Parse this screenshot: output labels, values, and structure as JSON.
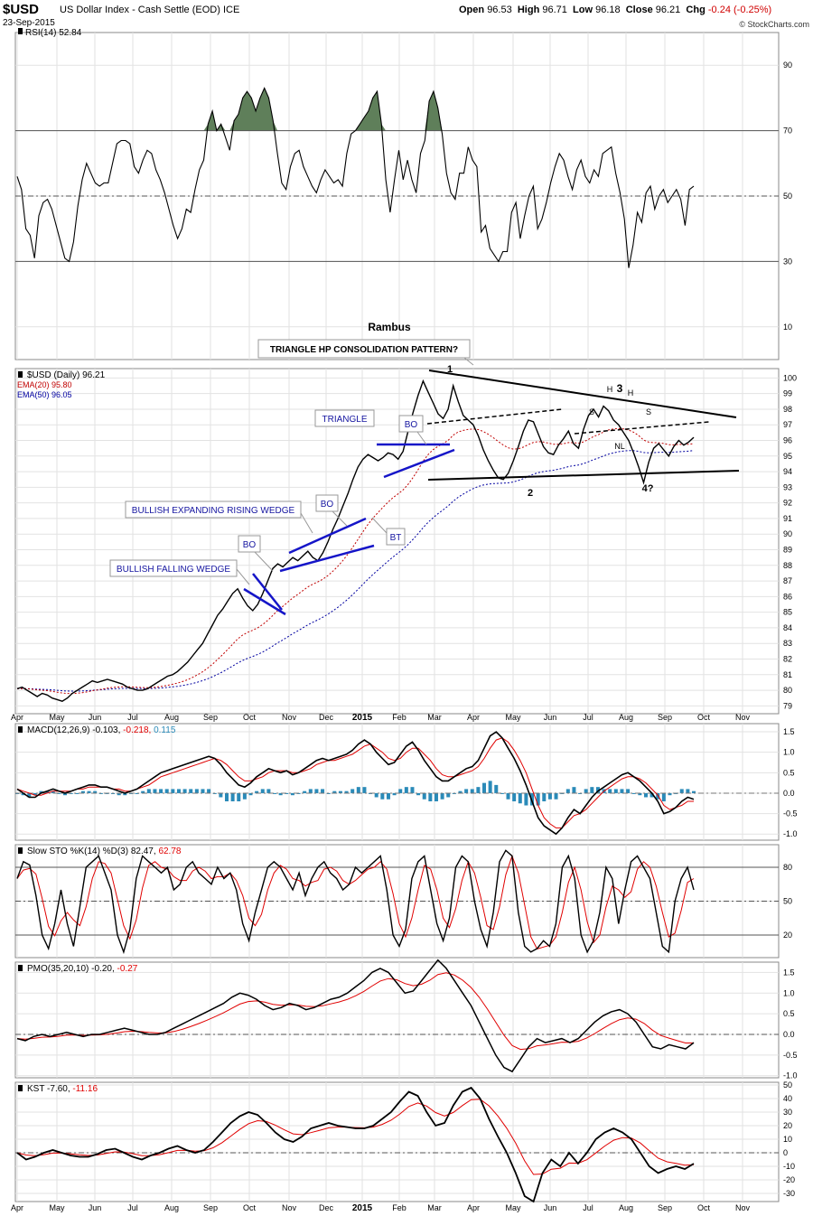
{
  "header": {
    "symbol": "$USD",
    "description": "US Dollar Index - Cash Settle (EOD) ICE",
    "date": "23-Sep-2015",
    "open_label": "Open",
    "open": "96.53",
    "high_label": "High",
    "high": "96.71",
    "low_label": "Low",
    "low": "96.18",
    "close_label": "Close",
    "close": "96.21",
    "chg_label": "Chg",
    "chg": "-0.24 (-0.25%)",
    "brand": "© StockCharts.com"
  },
  "colors": {
    "grid": "#e2e2e2",
    "ema20": "#c00000",
    "ema50": "#0000a0",
    "pattern": "#1515c8",
    "rsi_fill": "#5f7f5a",
    "hist": "#2a8ab8",
    "signal": "#e00000"
  },
  "x_axis": {
    "labels": [
      "Apr",
      "May",
      "Jun",
      "Jul",
      "Aug",
      "Sep",
      "Oct",
      "Nov",
      "Dec",
      "2015",
      "Feb",
      "Mar",
      "Apr",
      "May",
      "Jun",
      "Jul",
      "Aug",
      "Sep",
      "Oct",
      "Nov"
    ],
    "bold_index": 9
  },
  "chart_data": [
    {
      "type": "line",
      "panel": "rsi",
      "legend": "RSI(14) 52.84",
      "ylim": [
        0,
        100
      ],
      "yticks": [
        90,
        70,
        50,
        30,
        10
      ],
      "levels": [
        70,
        50,
        30
      ],
      "values": [
        56,
        52,
        40,
        38,
        31,
        44,
        48,
        49,
        46,
        41,
        36,
        31,
        30,
        36,
        47,
        55,
        60,
        57,
        54,
        53,
        54,
        54,
        60,
        66,
        67,
        67,
        66,
        59,
        57,
        61,
        64,
        63,
        58,
        55,
        51,
        46,
        41,
        37,
        40,
        46,
        45,
        52,
        58,
        61,
        72,
        76,
        70,
        72,
        68,
        64,
        73,
        75,
        80,
        82,
        80,
        76,
        80,
        83,
        80,
        73,
        63,
        54,
        52,
        59,
        63,
        64,
        59,
        56,
        53,
        51,
        55,
        58,
        56,
        54,
        55,
        53,
        63,
        69,
        70,
        72,
        74,
        76,
        80,
        82,
        72,
        55,
        45,
        55,
        64,
        55,
        61,
        55,
        51,
        63,
        67,
        79,
        82,
        77,
        69,
        57,
        51,
        49,
        57,
        57,
        65,
        61,
        59,
        39,
        41,
        34,
        32,
        30,
        33,
        33,
        45,
        48,
        37,
        44,
        50,
        53,
        40,
        43,
        48,
        54,
        59,
        63,
        61,
        56,
        52,
        58,
        61,
        56,
        54,
        58,
        56,
        63,
        64,
        65,
        57,
        51,
        43,
        28,
        35,
        45,
        42,
        51,
        53,
        46,
        50,
        52,
        48,
        50,
        52,
        49,
        41,
        52,
        53
      ]
    },
    {
      "type": "line",
      "panel": "price",
      "legend": "$USD (Daily) 96.21",
      "ema20_label": "EMA(20) 95.80",
      "ema50_label": "EMA(50) 96.05",
      "ylim": [
        78.5,
        100.6
      ],
      "yticks": [
        100,
        99,
        98,
        97,
        96,
        95,
        94,
        93,
        92,
        91,
        90,
        89,
        88,
        87,
        86,
        85,
        84,
        83,
        82,
        81,
        80,
        79
      ],
      "values": [
        80.1,
        80.2,
        80.0,
        79.8,
        79.6,
        79.8,
        79.7,
        79.5,
        79.4,
        79.3,
        79.5,
        79.8,
        80.0,
        80.2,
        80.4,
        80.6,
        80.5,
        80.6,
        80.7,
        80.6,
        80.5,
        80.4,
        80.2,
        80.1,
        80.0,
        80.0,
        80.1,
        80.3,
        80.5,
        80.7,
        80.9,
        81.0,
        81.2,
        81.5,
        81.8,
        82.2,
        82.6,
        83.0,
        83.6,
        84.2,
        84.8,
        85.2,
        85.7,
        86.2,
        86.5,
        85.9,
        85.4,
        85.1,
        85.5,
        86.2,
        87.0,
        87.8,
        88.1,
        87.9,
        88.2,
        88.5,
        88.3,
        88.6,
        88.9,
        88.5,
        88.3,
        88.8,
        89.5,
        90.3,
        91.0,
        91.8,
        92.6,
        93.5,
        94.3,
        94.8,
        95.1,
        94.9,
        94.7,
        94.9,
        95.2,
        95.1,
        94.8,
        95.3,
        96.6,
        97.8,
        98.9,
        99.8,
        99.1,
        98.4,
        97.7,
        97.4,
        98.0,
        99.5,
        98.5,
        97.6,
        97.3,
        97.0,
        96.3,
        95.4,
        94.7,
        94.1,
        93.6,
        93.5,
        93.9,
        94.7,
        95.6,
        96.6,
        97.3,
        97.2,
        96.4,
        95.6,
        95.2,
        95.1,
        95.7,
        96.1,
        96.6,
        95.8,
        95.5,
        96.7,
        97.6,
        98.0,
        97.5,
        98.2,
        97.9,
        97.3,
        97.0,
        96.5,
        96.0,
        95.2,
        94.3,
        93.3,
        94.6,
        95.5,
        95.8,
        95.4,
        95.0,
        95.6,
        96.0,
        95.7,
        95.9,
        96.2
      ]
    },
    {
      "type": "line",
      "panel": "macd",
      "legend": "MACD(12,26,9)",
      "legend_values": [
        "-0.103",
        "-0.218",
        "0.115"
      ],
      "ylim": [
        -1.15,
        1.7
      ],
      "yticks": [
        1.5,
        1.0,
        0.5,
        0.0,
        -0.5,
        -1.0
      ],
      "macd": [
        0.1,
        0.0,
        -0.1,
        -0.1,
        0.0,
        0.05,
        0.1,
        0.05,
        0.0,
        0.05,
        0.1,
        0.15,
        0.2,
        0.2,
        0.15,
        0.15,
        0.1,
        0.05,
        0.0,
        0.05,
        0.1,
        0.2,
        0.3,
        0.4,
        0.5,
        0.55,
        0.6,
        0.65,
        0.7,
        0.75,
        0.8,
        0.85,
        0.9,
        0.85,
        0.7,
        0.5,
        0.35,
        0.2,
        0.15,
        0.25,
        0.4,
        0.5,
        0.6,
        0.55,
        0.5,
        0.55,
        0.45,
        0.5,
        0.6,
        0.7,
        0.8,
        0.85,
        0.8,
        0.85,
        0.9,
        0.95,
        1.05,
        1.2,
        1.3,
        1.2,
        1.0,
        0.85,
        0.7,
        0.75,
        0.95,
        1.15,
        1.25,
        1.05,
        0.8,
        0.6,
        0.4,
        0.3,
        0.3,
        0.4,
        0.5,
        0.6,
        0.65,
        0.8,
        1.1,
        1.4,
        1.5,
        1.35,
        1.1,
        0.85,
        0.55,
        0.2,
        -0.2,
        -0.6,
        -0.8,
        -0.9,
        -1.0,
        -0.85,
        -0.6,
        -0.4,
        -0.5,
        -0.3,
        -0.1,
        0.05,
        0.15,
        0.25,
        0.35,
        0.45,
        0.5,
        0.4,
        0.3,
        0.15,
        0.0,
        -0.2,
        -0.5,
        -0.45,
        -0.35,
        -0.2,
        -0.1,
        -0.15
      ],
      "signal": [
        0.1,
        0.05,
        0.0,
        -0.05,
        -0.05,
        0.0,
        0.05,
        0.05,
        0.05,
        0.05,
        0.1,
        0.1,
        0.15,
        0.15,
        0.15,
        0.15,
        0.1,
        0.1,
        0.05,
        0.05,
        0.1,
        0.15,
        0.2,
        0.3,
        0.4,
        0.45,
        0.5,
        0.55,
        0.6,
        0.65,
        0.7,
        0.75,
        0.8,
        0.85,
        0.8,
        0.7,
        0.55,
        0.4,
        0.3,
        0.3,
        0.35,
        0.4,
        0.5,
        0.55,
        0.55,
        0.55,
        0.5,
        0.5,
        0.55,
        0.6,
        0.7,
        0.75,
        0.8,
        0.8,
        0.85,
        0.9,
        0.95,
        1.05,
        1.15,
        1.2,
        1.1,
        1.0,
        0.85,
        0.8,
        0.85,
        1.0,
        1.1,
        1.1,
        0.95,
        0.8,
        0.6,
        0.45,
        0.4,
        0.4,
        0.45,
        0.5,
        0.55,
        0.65,
        0.85,
        1.1,
        1.3,
        1.35,
        1.25,
        1.05,
        0.8,
        0.5,
        0.1,
        -0.3,
        -0.6,
        -0.75,
        -0.85,
        -0.85,
        -0.7,
        -0.55,
        -0.5,
        -0.4,
        -0.25,
        -0.1,
        0.05,
        0.15,
        0.25,
        0.35,
        0.4,
        0.4,
        0.35,
        0.25,
        0.1,
        -0.05,
        -0.3,
        -0.4,
        -0.35,
        -0.3,
        -0.2,
        -0.2
      ]
    },
    {
      "type": "line",
      "panel": "stoch",
      "legend": "Slow STO %K(14) %D(3)",
      "legend_values": [
        "82.47",
        "62.78"
      ],
      "ylim": [
        0,
        100
      ],
      "yticks": [
        80,
        50,
        20
      ],
      "levels": [
        80,
        50,
        20
      ],
      "values": [
        70,
        85,
        82,
        55,
        20,
        8,
        30,
        60,
        30,
        10,
        45,
        80,
        85,
        90,
        75,
        60,
        20,
        5,
        25,
        70,
        90,
        85,
        80,
        75,
        80,
        60,
        65,
        80,
        85,
        75,
        70,
        65,
        80,
        70,
        75,
        60,
        30,
        15,
        40,
        60,
        80,
        85,
        80,
        70,
        60,
        75,
        55,
        70,
        80,
        85,
        75,
        70,
        60,
        65,
        80,
        75,
        80,
        85,
        90,
        60,
        20,
        10,
        25,
        70,
        85,
        90,
        60,
        30,
        15,
        35,
        80,
        90,
        85,
        50,
        25,
        10,
        40,
        85,
        95,
        90,
        40,
        10,
        5,
        8,
        15,
        10,
        30,
        80,
        90,
        70,
        20,
        5,
        15,
        40,
        80,
        70,
        30,
        60,
        85,
        90,
        80,
        70,
        40,
        10,
        5,
        50,
        70,
        80,
        60
      ]
    },
    {
      "type": "line",
      "panel": "pmo",
      "legend": "PMO(35,20,10)",
      "legend_values": [
        "-0.20",
        "-0.27"
      ],
      "ylim": [
        -1.05,
        1.75
      ],
      "yticks": [
        1.5,
        1.0,
        0.5,
        0.0,
        -0.5,
        -1.0
      ],
      "values": [
        -0.1,
        -0.15,
        -0.05,
        0.0,
        -0.05,
        0.0,
        0.05,
        0.0,
        -0.05,
        0.0,
        0.0,
        0.05,
        0.1,
        0.15,
        0.1,
        0.05,
        0.0,
        0.0,
        0.05,
        0.15,
        0.25,
        0.35,
        0.45,
        0.55,
        0.65,
        0.75,
        0.9,
        1.0,
        0.95,
        0.85,
        0.7,
        0.6,
        0.65,
        0.75,
        0.7,
        0.6,
        0.65,
        0.75,
        0.85,
        0.9,
        1.0,
        1.15,
        1.3,
        1.5,
        1.6,
        1.5,
        1.25,
        1.0,
        1.05,
        1.3,
        1.55,
        1.8,
        1.6,
        1.3,
        1.0,
        0.7,
        0.3,
        -0.1,
        -0.5,
        -0.8,
        -0.9,
        -0.6,
        -0.3,
        -0.1,
        -0.2,
        -0.15,
        -0.1,
        -0.2,
        -0.1,
        0.1,
        0.3,
        0.45,
        0.55,
        0.6,
        0.5,
        0.3,
        0.0,
        -0.3,
        -0.35,
        -0.25,
        -0.3,
        -0.35,
        -0.2
      ]
    },
    {
      "type": "line",
      "panel": "kst",
      "legend": "KST",
      "legend_values": [
        "-7.60",
        "-11.16"
      ],
      "ylim": [
        -36,
        52
      ],
      "yticks": [
        50,
        40,
        30,
        20,
        10,
        0,
        -10,
        -20,
        -30
      ],
      "values": [
        0,
        -5,
        -3,
        0,
        2,
        0,
        -2,
        -3,
        -3,
        -1,
        2,
        3,
        0,
        -3,
        -5,
        -2,
        0,
        3,
        5,
        2,
        0,
        2,
        8,
        15,
        22,
        27,
        30,
        28,
        22,
        15,
        10,
        8,
        12,
        18,
        20,
        22,
        20,
        19,
        18,
        18,
        20,
        25,
        30,
        38,
        45,
        42,
        30,
        20,
        22,
        35,
        45,
        48,
        40,
        25,
        12,
        0,
        -15,
        -32,
        -36,
        -15,
        -5,
        -10,
        0,
        -8,
        0,
        10,
        15,
        18,
        15,
        10,
        0,
        -10,
        -15,
        -12,
        -10,
        -12,
        -8
      ]
    }
  ],
  "annotations": {
    "rambus": "Rambus",
    "pattern_title": "TRIANGLE HP CONSOLIDATION PATTERN?",
    "triangle": "TRIANGLE",
    "expanding_wedge": "BULLISH EXPANDING RISING WEDGE",
    "falling_wedge": "BULLISH FALLING WEDGE",
    "bo": "BO",
    "bt": "BT",
    "p1": "1",
    "p2": "2",
    "p3": "3",
    "p4": "4?",
    "s": "S",
    "h": "H",
    "nl": "NL"
  }
}
